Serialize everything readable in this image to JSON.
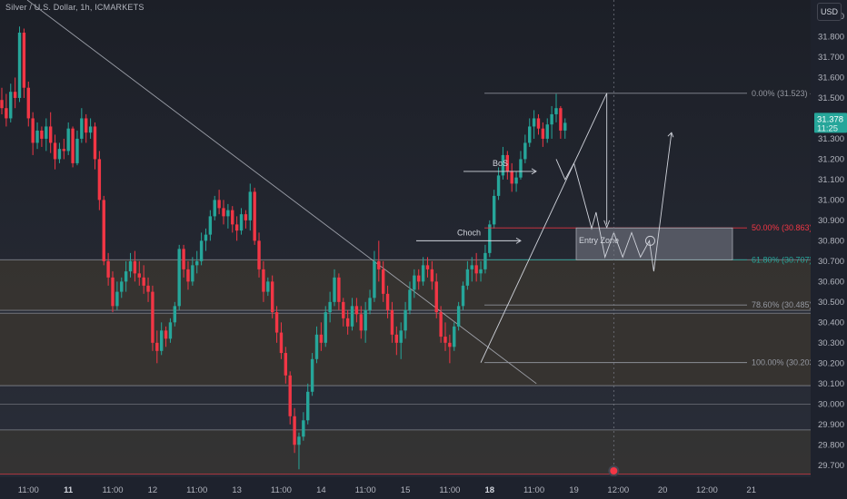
{
  "header": {
    "symbol_title": "Silver / U.S. Dollar, 1h, ICMARKETS",
    "currency_label": "USD"
  },
  "price_badge": {
    "price": "31.378",
    "countdown": "11:25",
    "color": "#26a69a"
  },
  "colors": {
    "background": "#1e222d",
    "up": "#26a69a",
    "down": "#f23645",
    "trendline": "#b2b5be",
    "zone_fill": "#3d382f",
    "fib_red": "#f23645",
    "fib_teal": "#26a69a",
    "fib_gray": "#9598a1",
    "entry_zone_fill": "#5d606b",
    "mid_zone_fill": "#2f3341"
  },
  "chart_data": {
    "type": "candlestick",
    "title": "Silver / U.S. Dollar, 1h, ICMARKETS",
    "xlabel": "",
    "ylabel": "",
    "ylim": [
      29.65,
      31.98
    ],
    "y_ticks": [
      29.7,
      29.8,
      29.9,
      30.0,
      30.1,
      30.2,
      30.3,
      30.4,
      30.5,
      30.6,
      30.7,
      30.8,
      30.9,
      31.0,
      31.1,
      31.2,
      31.3,
      31.4,
      31.5,
      31.6,
      31.7,
      31.8,
      31.9
    ],
    "y_tick_labels": [
      "29.700",
      "29.800",
      "29.900",
      "30.000",
      "30.100",
      "30.200",
      "30.300",
      "30.400",
      "30.500",
      "30.600",
      "30.700",
      "30.800",
      "30.900",
      "31.000",
      "31.100",
      "31.200",
      "31.300",
      "31.400",
      "31.500",
      "31.600",
      "31.700",
      "31.800",
      "31.900"
    ],
    "x_ticks": [
      {
        "label": "11:00",
        "bar": 6,
        "bold": false
      },
      {
        "label": "11",
        "bar": 15,
        "bold": true
      },
      {
        "label": "11:00",
        "bar": 25,
        "bold": false
      },
      {
        "label": "12",
        "bar": 34,
        "bold": false
      },
      {
        "label": "11:00",
        "bar": 44,
        "bold": false
      },
      {
        "label": "13",
        "bar": 53,
        "bold": false
      },
      {
        "label": "11:00",
        "bar": 63,
        "bold": false
      },
      {
        "label": "14",
        "bar": 72,
        "bold": false
      },
      {
        "label": "11:00",
        "bar": 82,
        "bold": false
      },
      {
        "label": "15",
        "bar": 91,
        "bold": false
      },
      {
        "label": "11:00",
        "bar": 101,
        "bold": false
      },
      {
        "label": "18",
        "bar": 110,
        "bold": true
      },
      {
        "label": "11:00",
        "bar": 120,
        "bold": false
      },
      {
        "label": "19",
        "bar": 129,
        "bold": false
      },
      {
        "label": "12:00",
        "bar": 139,
        "bold": false
      },
      {
        "label": "20",
        "bar": 149,
        "bold": false
      },
      {
        "label": "12:00",
        "bar": 159,
        "bold": false
      },
      {
        "label": "21",
        "bar": 169,
        "bold": false
      }
    ],
    "fibonacci": [
      {
        "label": "0.00% (31.523)",
        "price": 31.523,
        "color": "gray"
      },
      {
        "label": "50.00% (30.863)",
        "price": 30.863,
        "color": "red"
      },
      {
        "label": "61.80% (30.707)",
        "price": 30.707,
        "color": "teal"
      },
      {
        "label": "78.60% (30.485)",
        "price": 30.485,
        "color": "gray"
      },
      {
        "label": "100.00% (30.203)",
        "price": 30.203,
        "color": "gray"
      }
    ],
    "annotations": {
      "bos_label": "BoS",
      "choch_label": "Choch",
      "entry_zone_label": "Entry Zone"
    },
    "zones": [
      {
        "from": 30.459,
        "to": 30.707
      },
      {
        "from": 30.09,
        "to": 30.445
      },
      {
        "from": 29.656,
        "to": 29.873
      }
    ],
    "series": [
      {
        "values": [
          [
            31.49,
            31.55,
            31.42,
            31.45
          ],
          [
            31.45,
            31.52,
            31.36,
            31.4
          ],
          [
            31.4,
            31.57,
            31.38,
            31.53
          ],
          [
            31.53,
            31.6,
            31.45,
            31.5
          ],
          [
            31.5,
            31.85,
            31.48,
            31.82
          ],
          [
            31.82,
            31.84,
            31.5,
            31.55
          ],
          [
            31.55,
            31.58,
            31.36,
            31.4
          ],
          [
            31.4,
            31.43,
            31.22,
            31.28
          ],
          [
            31.28,
            31.38,
            31.25,
            31.34
          ],
          [
            31.34,
            31.36,
            31.26,
            31.3
          ],
          [
            31.3,
            31.4,
            31.24,
            31.36
          ],
          [
            31.36,
            31.43,
            31.23,
            31.28
          ],
          [
            31.28,
            31.32,
            31.15,
            31.2
          ],
          [
            31.2,
            31.28,
            31.18,
            31.25
          ],
          [
            31.25,
            31.3,
            31.2,
            31.24
          ],
          [
            31.24,
            31.38,
            31.22,
            31.35
          ],
          [
            31.35,
            31.36,
            31.16,
            31.18
          ],
          [
            31.18,
            31.34,
            31.17,
            31.3
          ],
          [
            31.3,
            31.45,
            31.28,
            31.4
          ],
          [
            31.4,
            31.42,
            31.28,
            31.33
          ],
          [
            31.33,
            31.4,
            31.3,
            31.36
          ],
          [
            31.36,
            31.38,
            31.15,
            31.2
          ],
          [
            31.2,
            31.24,
            30.95,
            31.0
          ],
          [
            31.0,
            31.02,
            30.68,
            30.7
          ],
          [
            30.7,
            30.74,
            30.58,
            30.62
          ],
          [
            30.62,
            30.65,
            30.45,
            30.48
          ],
          [
            30.48,
            30.6,
            30.46,
            30.55
          ],
          [
            30.55,
            30.62,
            30.52,
            30.6
          ],
          [
            30.6,
            30.7,
            30.55,
            30.65
          ],
          [
            30.65,
            30.74,
            30.62,
            30.7
          ],
          [
            30.7,
            30.75,
            30.6,
            30.64
          ],
          [
            30.64,
            30.7,
            30.58,
            30.62
          ],
          [
            30.62,
            30.68,
            30.54,
            30.58
          ],
          [
            30.58,
            30.62,
            30.5,
            30.55
          ],
          [
            30.55,
            30.58,
            30.26,
            30.3
          ],
          [
            30.3,
            30.36,
            30.2,
            30.26
          ],
          [
            30.26,
            30.4,
            30.24,
            30.36
          ],
          [
            30.36,
            30.38,
            30.28,
            30.32
          ],
          [
            30.32,
            30.42,
            30.3,
            30.4
          ],
          [
            30.4,
            30.5,
            30.38,
            30.48
          ],
          [
            30.48,
            30.78,
            30.46,
            30.76
          ],
          [
            30.76,
            30.78,
            30.62,
            30.66
          ],
          [
            30.66,
            30.7,
            30.56,
            30.6
          ],
          [
            30.6,
            30.72,
            30.58,
            30.68
          ],
          [
            30.68,
            30.75,
            30.64,
            30.7
          ],
          [
            30.7,
            30.84,
            30.68,
            30.8
          ],
          [
            30.8,
            30.86,
            30.75,
            30.83
          ],
          [
            30.83,
            30.95,
            30.8,
            30.92
          ],
          [
            30.92,
            31.02,
            30.9,
            31.0
          ],
          [
            31.0,
            31.05,
            30.93,
            30.96
          ],
          [
            30.96,
            31.0,
            30.88,
            30.92
          ],
          [
            30.92,
            30.98,
            30.86,
            30.95
          ],
          [
            30.95,
            30.97,
            30.84,
            30.88
          ],
          [
            30.88,
            30.92,
            30.8,
            30.85
          ],
          [
            30.85,
            30.96,
            30.83,
            30.93
          ],
          [
            30.93,
            30.95,
            30.86,
            30.9
          ],
          [
            30.9,
            31.08,
            30.85,
            31.04
          ],
          [
            31.04,
            31.06,
            30.78,
            30.8
          ],
          [
            30.8,
            30.84,
            30.62,
            30.66
          ],
          [
            30.66,
            30.7,
            30.5,
            30.55
          ],
          [
            30.55,
            30.62,
            30.53,
            30.6
          ],
          [
            30.6,
            30.63,
            30.42,
            30.45
          ],
          [
            30.45,
            30.48,
            30.3,
            30.35
          ],
          [
            30.35,
            30.4,
            30.22,
            30.25
          ],
          [
            30.25,
            30.28,
            30.1,
            30.14
          ],
          [
            30.14,
            30.16,
            29.9,
            29.94
          ],
          [
            29.94,
            29.98,
            29.76,
            29.8
          ],
          [
            29.8,
            29.86,
            29.68,
            29.84
          ],
          [
            29.84,
            29.96,
            29.82,
            29.92
          ],
          [
            29.92,
            30.1,
            29.9,
            30.06
          ],
          [
            30.06,
            30.25,
            30.04,
            30.22
          ],
          [
            30.22,
            30.38,
            30.2,
            30.34
          ],
          [
            30.34,
            30.4,
            30.26,
            30.3
          ],
          [
            30.3,
            30.48,
            30.28,
            30.45
          ],
          [
            30.45,
            30.55,
            30.4,
            30.5
          ],
          [
            30.5,
            30.66,
            30.48,
            30.62
          ],
          [
            30.62,
            30.64,
            30.46,
            30.5
          ],
          [
            30.5,
            30.52,
            30.38,
            30.42
          ],
          [
            30.42,
            30.46,
            30.34,
            30.38
          ],
          [
            30.38,
            30.52,
            30.36,
            30.48
          ],
          [
            30.48,
            30.52,
            30.4,
            30.44
          ],
          [
            30.44,
            30.48,
            30.32,
            30.36
          ],
          [
            30.36,
            30.5,
            30.3,
            30.46
          ],
          [
            30.46,
            30.56,
            30.44,
            30.52
          ],
          [
            30.52,
            30.75,
            30.5,
            30.7
          ],
          [
            30.7,
            30.8,
            30.6,
            30.66
          ],
          [
            30.66,
            30.7,
            30.5,
            30.54
          ],
          [
            30.54,
            30.58,
            30.42,
            30.46
          ],
          [
            30.46,
            30.5,
            30.3,
            30.34
          ],
          [
            30.34,
            30.38,
            30.24,
            30.3
          ],
          [
            30.3,
            30.4,
            30.22,
            30.36
          ],
          [
            30.36,
            30.5,
            30.32,
            30.46
          ],
          [
            30.46,
            30.6,
            30.44,
            30.56
          ],
          [
            30.56,
            30.66,
            30.52,
            30.63
          ],
          [
            30.63,
            30.66,
            30.56,
            30.6
          ],
          [
            30.6,
            30.72,
            30.58,
            30.68
          ],
          [
            30.68,
            30.72,
            30.62,
            30.66
          ],
          [
            30.66,
            30.7,
            30.56,
            30.6
          ],
          [
            30.6,
            30.64,
            30.42,
            30.45
          ],
          [
            30.45,
            30.48,
            30.3,
            30.33
          ],
          [
            30.33,
            30.4,
            30.26,
            30.3
          ],
          [
            30.3,
            30.34,
            30.2,
            30.28
          ],
          [
            30.28,
            30.4,
            30.26,
            30.38
          ],
          [
            30.38,
            30.5,
            30.36,
            30.48
          ],
          [
            30.48,
            30.6,
            30.46,
            30.58
          ],
          [
            30.58,
            30.7,
            30.56,
            30.66
          ],
          [
            30.66,
            30.72,
            30.6,
            30.68
          ],
          [
            30.68,
            30.74,
            30.6,
            30.64
          ],
          [
            30.64,
            30.7,
            30.6,
            30.66
          ],
          [
            30.66,
            30.78,
            30.64,
            30.74
          ],
          [
            30.74,
            30.9,
            30.72,
            30.88
          ],
          [
            30.88,
            31.05,
            30.86,
            31.02
          ],
          [
            31.02,
            31.16,
            31.0,
            31.12
          ],
          [
            31.12,
            31.26,
            31.1,
            31.22
          ],
          [
            31.22,
            31.24,
            31.1,
            31.14
          ],
          [
            31.14,
            31.18,
            31.04,
            31.08
          ],
          [
            31.08,
            31.14,
            31.04,
            31.11
          ],
          [
            31.11,
            31.24,
            31.1,
            31.2
          ],
          [
            31.2,
            31.32,
            31.18,
            31.28
          ],
          [
            31.28,
            31.4,
            31.26,
            31.36
          ],
          [
            31.36,
            31.44,
            31.3,
            31.4
          ],
          [
            31.4,
            31.42,
            31.32,
            31.35
          ],
          [
            31.35,
            31.38,
            31.26,
            31.3
          ],
          [
            31.3,
            31.4,
            31.28,
            31.37
          ],
          [
            31.37,
            31.46,
            31.3,
            31.42
          ],
          [
            31.42,
            31.52,
            31.38,
            31.45
          ],
          [
            31.45,
            31.46,
            31.3,
            31.34
          ],
          [
            31.34,
            31.4,
            31.3,
            31.378
          ]
        ]
      }
    ],
    "projection_path": [
      [
        125,
        31.2
      ],
      [
        127,
        31.1
      ],
      [
        129,
        31.18
      ],
      [
        131,
        31.02
      ],
      [
        133,
        30.86
      ],
      [
        134,
        30.94
      ],
      [
        136,
        30.72
      ],
      [
        138,
        30.84
      ],
      [
        140,
        30.72
      ],
      [
        142,
        30.84
      ],
      [
        144,
        30.72
      ],
      [
        146,
        30.8
      ],
      [
        147,
        30.65
      ],
      [
        151,
        31.33
      ]
    ]
  }
}
